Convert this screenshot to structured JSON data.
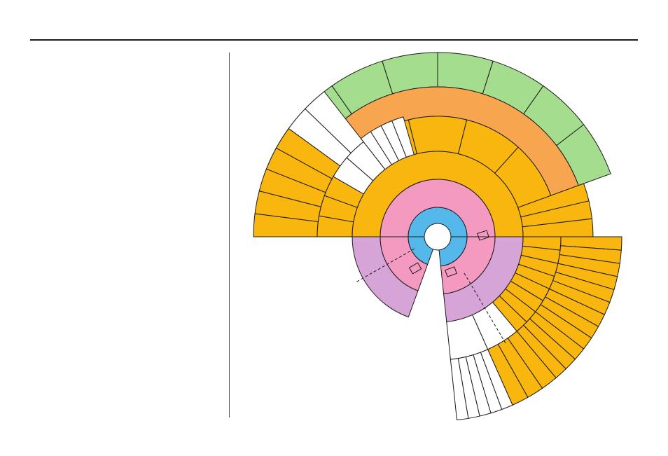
{
  "page": {
    "left_column_text": ""
  },
  "diagram": {
    "kind": "sunburst",
    "colors": {
      "center": "#ffffff",
      "ring1": "#55b8ea",
      "ring2": "#f49ac1",
      "ring3_left": "#d7a4d7",
      "ring3_right": "#d7a4d7",
      "orange": "#f8b60e",
      "peach": "#f7a64f",
      "green": "#a4dd8e",
      "empty": "#ffffff",
      "stroke": "#1a1a1a"
    },
    "rings": [
      {
        "name": "center",
        "segments": 1
      },
      {
        "name": "ring1",
        "segments": 1
      },
      {
        "name": "ring2",
        "segments": 1
      },
      {
        "name": "ring3",
        "segments": 6
      },
      {
        "name": "outer-upper-green",
        "segments": 8
      },
      {
        "name": "outer-upper-peach",
        "segments": 1
      },
      {
        "name": "outer-left-fan",
        "segments": 12
      },
      {
        "name": "outer-right-fan",
        "segments": 16
      },
      {
        "name": "outer-bottom-fan",
        "segments": 5
      }
    ]
  }
}
